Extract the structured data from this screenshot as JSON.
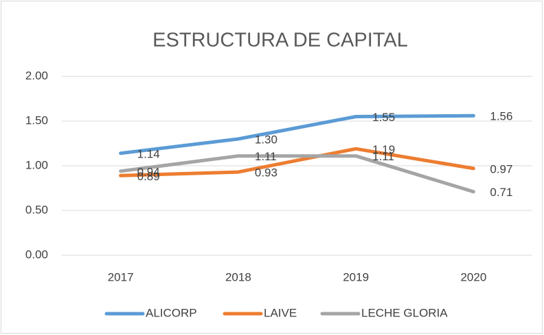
{
  "chart_data": {
    "type": "line",
    "title": "ESTRUCTURA DE CAPITAL",
    "categories": [
      "2017",
      "2018",
      "2019",
      "2020"
    ],
    "series": [
      {
        "name": "ALICORP",
        "color": "#5b9bd5",
        "values": [
          1.14,
          1.3,
          1.55,
          1.56
        ],
        "value_labels": [
          "1.14",
          "1.30",
          "1.55",
          "1.56"
        ]
      },
      {
        "name": "LAIVE",
        "color": "#ed7d31",
        "values": [
          0.89,
          0.93,
          1.19,
          0.97
        ],
        "value_labels": [
          "0.89",
          "0.93",
          "1.19",
          "0.97"
        ]
      },
      {
        "name": "LECHE GLORIA",
        "color": "#a5a5a5",
        "values": [
          0.94,
          1.11,
          1.11,
          0.71
        ],
        "value_labels": [
          "0.94",
          "1.11",
          "1.11",
          "0.71"
        ]
      }
    ],
    "ylim": [
      0,
      2
    ],
    "yticks": [
      {
        "value": 0,
        "label": "0.00"
      },
      {
        "value": 0.5,
        "label": "0.50"
      },
      {
        "value": 1,
        "label": "1.00"
      },
      {
        "value": 1.5,
        "label": "1.50"
      },
      {
        "value": 2,
        "label": "2.00"
      }
    ],
    "grid": true,
    "legend": "bottom"
  }
}
